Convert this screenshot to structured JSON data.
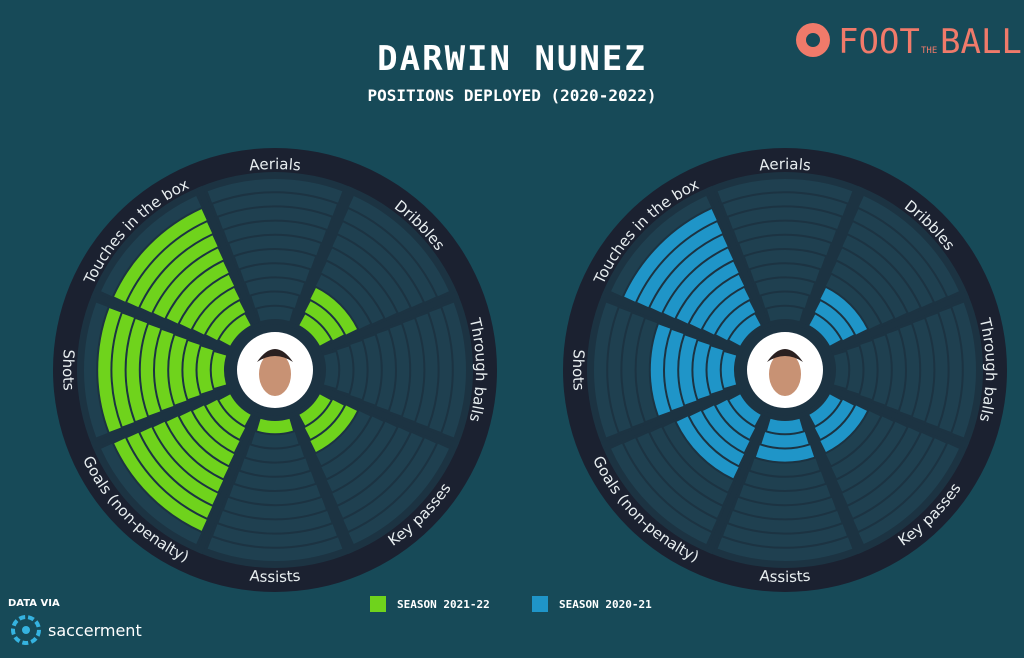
{
  "title": "DARWIN NUNEZ",
  "subtitle": "POSITIONS DEPLOYED (2020-2022)",
  "logo": {
    "part1": "FOOT",
    "part2": "THE",
    "part3": "BALL"
  },
  "source": {
    "label": "DATA VIA",
    "name": "saccerment"
  },
  "chart_data": [
    {
      "type": "radial-bar",
      "categories": [
        "Aerials",
        "Dribbles",
        "Through balls",
        "Key passes",
        "Assists",
        "Goals (non-penalty)",
        "Shots",
        "Touches in the box"
      ],
      "series": [
        {
          "name": "SEASON 2021-22",
          "color": "#6fd31c",
          "values": [
            0,
            3,
            0,
            3,
            1,
            9,
            9,
            9
          ]
        }
      ],
      "ylim": [
        0,
        10
      ]
    },
    {
      "type": "radial-bar",
      "categories": [
        "Aerials",
        "Dribbles",
        "Through balls",
        "Key passes",
        "Assists",
        "Goals (non-penalty)",
        "Shots",
        "Touches in the box"
      ],
      "series": [
        {
          "name": "SEASON 2020-21",
          "color": "#1f95c8",
          "values": [
            0,
            3,
            0,
            3,
            3,
            5,
            6,
            9
          ]
        }
      ],
      "ylim": [
        0,
        10
      ]
    }
  ]
}
